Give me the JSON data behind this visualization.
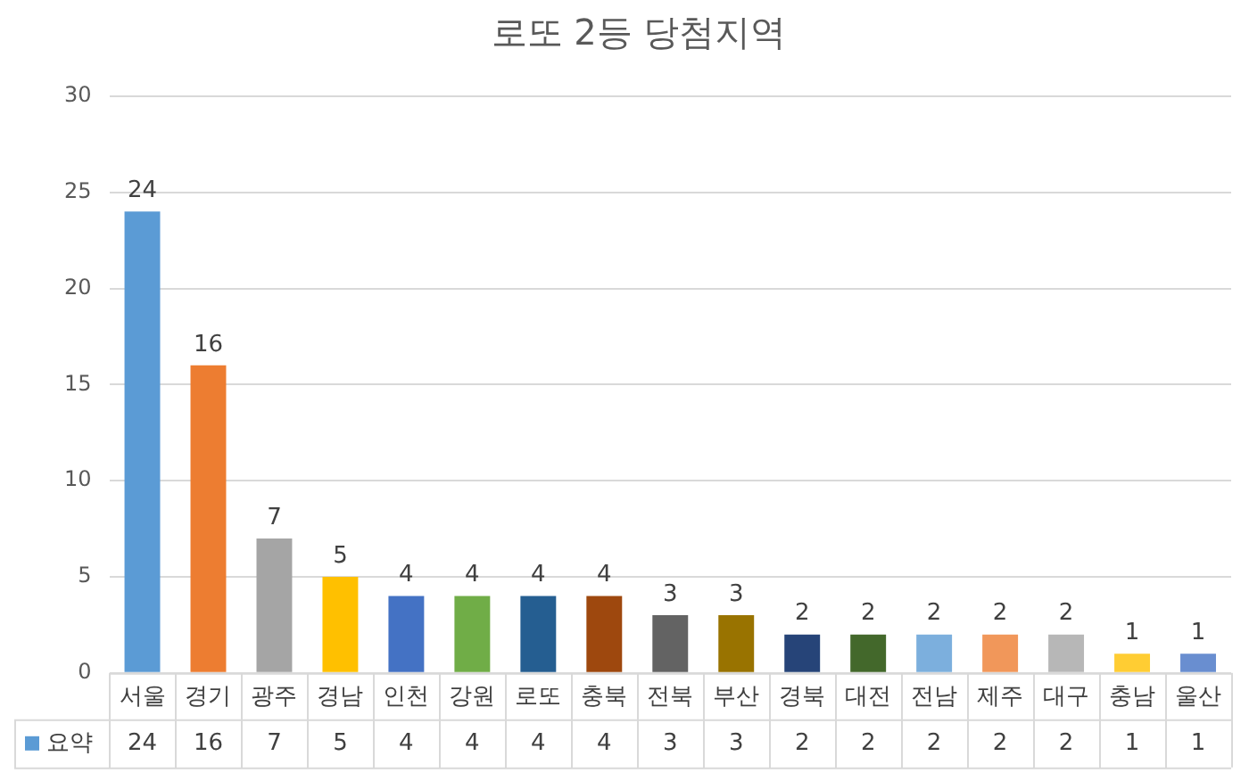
{
  "chart_data": {
    "type": "bar",
    "title": "로또 2등 당첨지역",
    "categories": [
      "서울",
      "경기",
      "광주",
      "경남",
      "인천",
      "강원",
      "로또",
      "충북",
      "전북",
      "부산",
      "경북",
      "대전",
      "전남",
      "제주",
      "대구",
      "충남",
      "울산"
    ],
    "series": [
      {
        "name": "요약",
        "color": "#5b9bd5",
        "values": [
          24,
          16,
          7,
          5,
          4,
          4,
          4,
          4,
          3,
          3,
          2,
          2,
          2,
          2,
          2,
          1,
          1
        ],
        "colors": [
          "#5b9bd5",
          "#ed7d31",
          "#a5a5a5",
          "#ffc000",
          "#4472c4",
          "#70ad47",
          "#255e91",
          "#9e480e",
          "#636363",
          "#997300",
          "#264478",
          "#43682b",
          "#7cafdd",
          "#f1975a",
          "#b7b7b7",
          "#ffcd33",
          "#698ed0"
        ]
      }
    ],
    "ylim": [
      0,
      30
    ],
    "yticks": [
      0,
      5,
      10,
      15,
      20,
      25,
      30
    ],
    "grid": "y",
    "legend": "bottom",
    "data_labels": true,
    "annotations": [
      "24",
      "16",
      "7",
      "5",
      "4",
      "4",
      "4",
      "4",
      "3",
      "3",
      "2",
      "2",
      "2",
      "2",
      "2",
      "1",
      "1"
    ]
  }
}
